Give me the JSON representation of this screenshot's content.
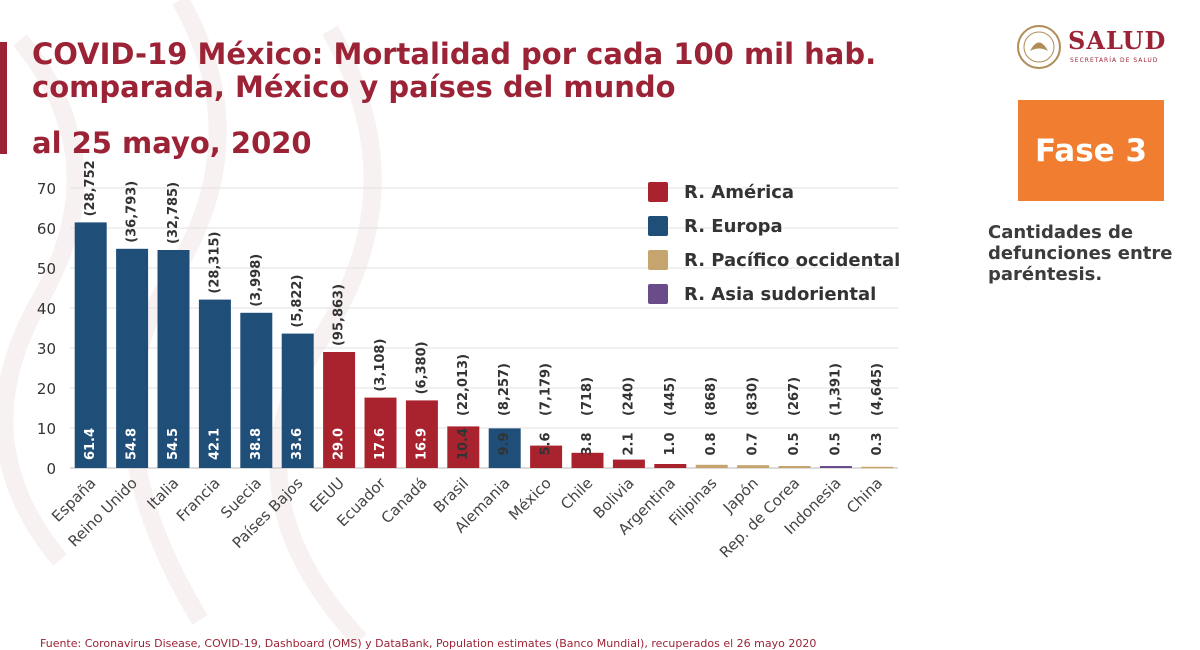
{
  "header": {
    "title_line1": "COVID-19 México: Mortalidad por cada 100 mil hab.",
    "title_line2": "comparada, México y países del mundo",
    "subtitle": "al 25 mayo, 2020"
  },
  "logo": {
    "name": "SALUD",
    "subtitle": "SECRETARÍA DE SALUD"
  },
  "fase": {
    "label": "Fase 3",
    "color": "#f07d30"
  },
  "note": "Cantidades de defunciones entre paréntesis.",
  "source": "Fuente: Coronavirus Disease, COVID-19, Dashboard (OMS) y DataBank, Population estimates (Banco Mundial), recuperados el 26 mayo 2020",
  "colors": {
    "America": "#a8232e",
    "Europa": "#1f4e79",
    "Pacifico": "#c5a46d",
    "Asia": "#6b4c8a",
    "accent": "#9b2335"
  },
  "legend": [
    {
      "label": "R. América",
      "region": "America"
    },
    {
      "label": "R. Europa",
      "region": "Europa"
    },
    {
      "label": "R. Pacífico occidental",
      "region": "Pacifico"
    },
    {
      "label": "R. Asia sudoriental",
      "region": "Asia"
    }
  ],
  "chart_data": {
    "type": "bar",
    "ylim": [
      0,
      70
    ],
    "yticks": [
      0,
      10,
      20,
      30,
      40,
      50,
      60,
      70
    ],
    "grid": true,
    "legend_position": "top-right",
    "categories": [
      "España",
      "Reino Unido",
      "Italia",
      "Francia",
      "Suecia",
      "Países Bajos",
      "EEUU",
      "Ecuador",
      "Canadá",
      "Brasil",
      "Alemania",
      "México",
      "Chile",
      "Bolivia",
      "Argentina",
      "Filipinas",
      "Japón",
      "Rep. de Corea",
      "Indonesia",
      "China"
    ],
    "values": [
      61.4,
      54.8,
      54.5,
      42.1,
      38.8,
      33.6,
      29.0,
      17.6,
      16.9,
      10.4,
      9.9,
      5.6,
      3.8,
      2.1,
      1.0,
      0.8,
      0.7,
      0.5,
      0.5,
      0.3
    ],
    "value_labels": [
      "61.4",
      "54.8",
      "54.5",
      "42.1",
      "38.8",
      "33.6",
      "29.0",
      "17.6",
      "16.9",
      "10.4",
      "9.9",
      "5.6",
      "3.8",
      "2.1",
      "1.0",
      "0.8",
      "0.7",
      "0.5",
      "0.5",
      "0.3"
    ],
    "deaths": [
      "(28,752)",
      "(36,793)",
      "(32,785)",
      "(28,315)",
      "(3,998)",
      "(5,822)",
      "(95,863)",
      "(3,108)",
      "(6,380)",
      "(22,013)",
      "(8,257)",
      "(7,179)",
      "(718)",
      "(240)",
      "(445)",
      "(868)",
      "(830)",
      "(267)",
      "(1,391)",
      "(4,645)"
    ],
    "regions": [
      "Europa",
      "Europa",
      "Europa",
      "Europa",
      "Europa",
      "Europa",
      "America",
      "America",
      "America",
      "America",
      "Europa",
      "America",
      "America",
      "America",
      "America",
      "Pacifico",
      "Pacifico",
      "Pacifico",
      "Asia",
      "Pacifico"
    ]
  }
}
